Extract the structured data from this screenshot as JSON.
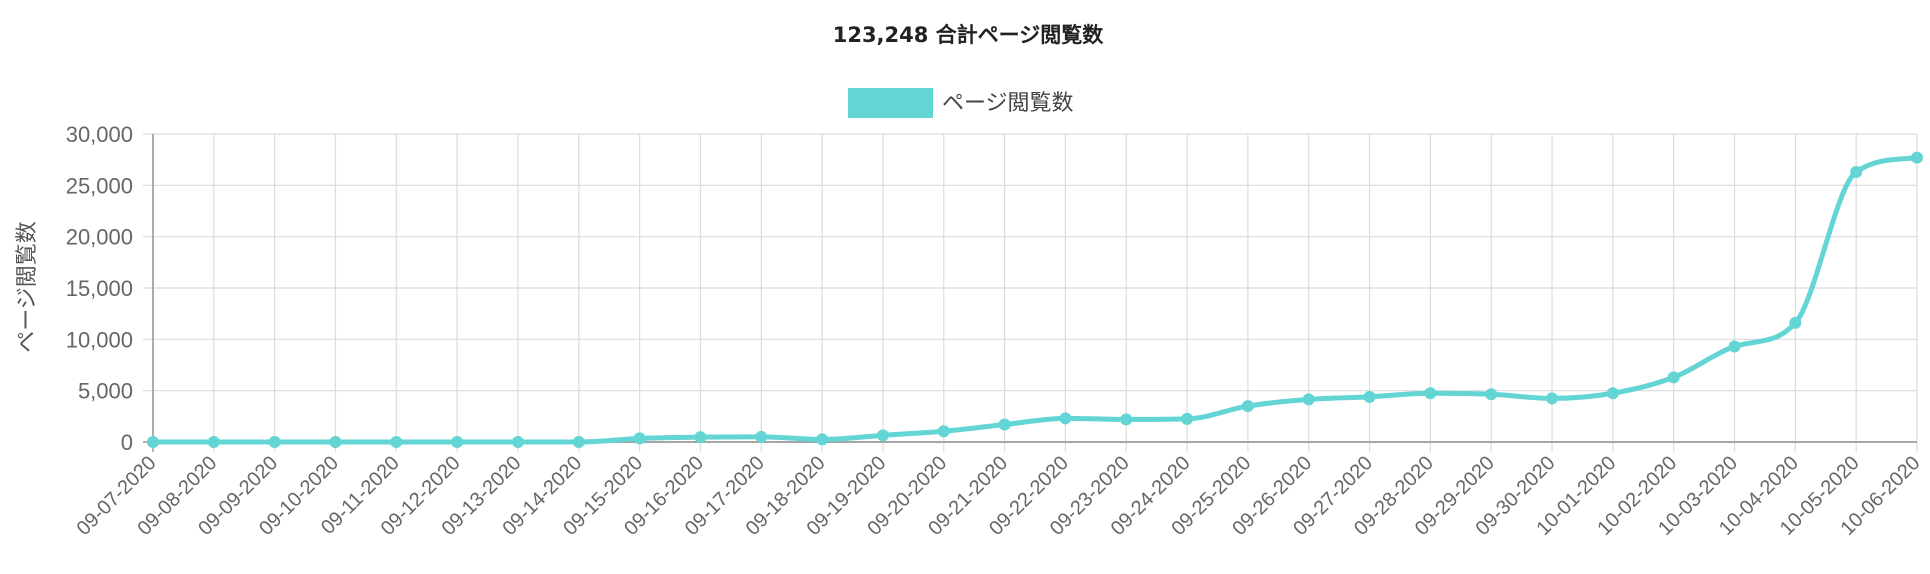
{
  "chart_data": {
    "type": "line",
    "title": "123,248 合計ページ閲覧数",
    "ylabel": "ページ閲覧数",
    "xlabel": "",
    "legend": {
      "position": "top-center"
    },
    "grid": true,
    "ylim": [
      0,
      30000
    ],
    "yticks": [
      "0",
      "5,000",
      "10,000",
      "15,000",
      "20,000",
      "25,000",
      "30,000"
    ],
    "categories": [
      "09-07-2020",
      "09-08-2020",
      "09-09-2020",
      "09-10-2020",
      "09-11-2020",
      "09-12-2020",
      "09-13-2020",
      "09-14-2020",
      "09-15-2020",
      "09-16-2020",
      "09-17-2020",
      "09-18-2020",
      "09-19-2020",
      "09-20-2020",
      "09-21-2020",
      "09-22-2020",
      "09-23-2020",
      "09-24-2020",
      "09-25-2020",
      "09-26-2020",
      "09-27-2020",
      "09-28-2020",
      "09-29-2020",
      "09-30-2020",
      "10-01-2020",
      "10-02-2020",
      "10-03-2020",
      "10-04-2020",
      "10-05-2020",
      "10-06-2020"
    ],
    "series": [
      {
        "name": "ページ閲覧数",
        "color": "#63d5d4",
        "values": [
          0,
          0,
          0,
          0,
          0,
          0,
          0,
          0,
          350,
          480,
          500,
          250,
          650,
          1050,
          1700,
          2300,
          2200,
          2250,
          3500,
          4150,
          4400,
          4750,
          4650,
          4250,
          4750,
          6300,
          9300,
          11600,
          26300,
          27700
        ]
      }
    ]
  }
}
